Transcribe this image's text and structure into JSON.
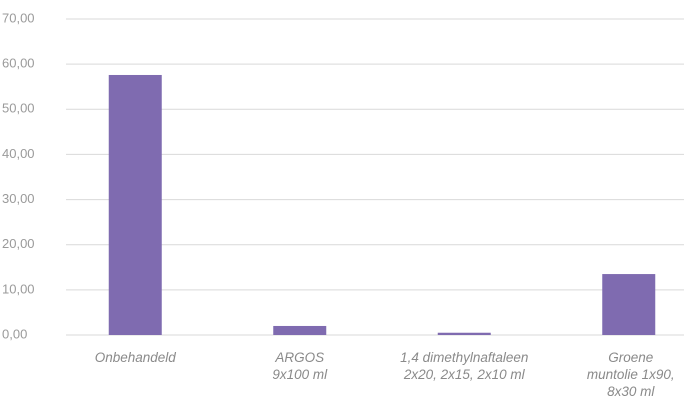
{
  "chart_data": {
    "type": "bar",
    "categories": [
      "Onbehandeld",
      "ARGOS\n9x100 ml",
      "1,4 dimethylnaftaleen\n2x20, 2x15, 2x10 ml",
      "Groene\nmuntolie 1x90,\n8x30 ml"
    ],
    "values": [
      57.6,
      2.0,
      0.5,
      13.5
    ],
    "color": "#7f6bb0",
    "ylim": [
      0,
      70
    ],
    "yticks": [
      {
        "value": 0,
        "label": "0,00"
      },
      {
        "value": 10,
        "label": "10,00"
      },
      {
        "value": 20,
        "label": "20,00"
      },
      {
        "value": 30,
        "label": "30,00"
      },
      {
        "value": 40,
        "label": "40,00"
      },
      {
        "value": 50,
        "label": "50,00"
      },
      {
        "value": 60,
        "label": "60,00"
      },
      {
        "value": 70,
        "label": "70,00"
      }
    ],
    "grid": true
  }
}
